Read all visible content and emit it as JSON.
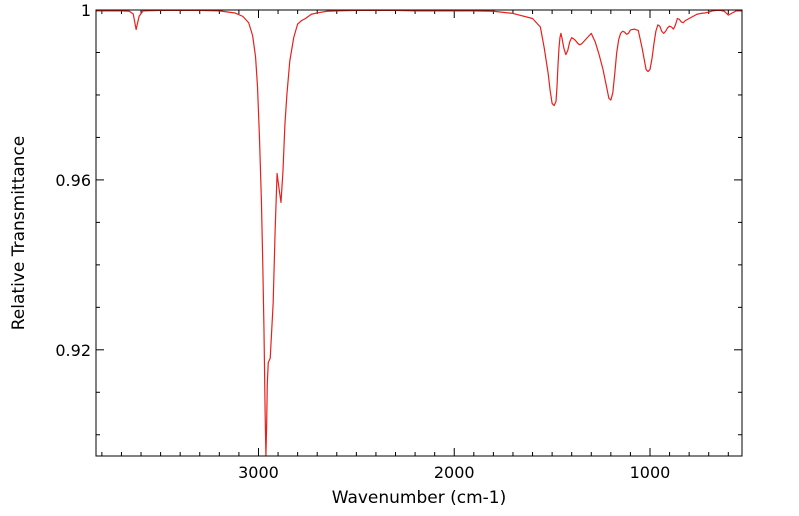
{
  "chart_data": {
    "type": "line",
    "title": "",
    "xlabel": "Wavenumber (cm-1)",
    "ylabel": "Relative Transmittance",
    "x_reversed": true,
    "xlim": [
      3830,
      530
    ],
    "ylim": [
      0.895,
      1.0
    ],
    "grid": false,
    "legend": "none",
    "x_ticks": [
      {
        "value": 3000,
        "label": "3000"
      },
      {
        "value": 2000,
        "label": "2000"
      },
      {
        "value": 1000,
        "label": "1000"
      }
    ],
    "y_ticks": [
      {
        "value": 1.0,
        "label": "1"
      },
      {
        "value": 0.96,
        "label": "0.96"
      },
      {
        "value": 0.92,
        "label": "0.92"
      }
    ],
    "x_minor_step": 100,
    "y_minor_step": 0.01,
    "series": [
      {
        "color": "#e8201c",
        "x": [
          3830,
          3700,
          3660,
          3640,
          3625,
          3610,
          3590,
          3500,
          3400,
          3300,
          3200,
          3120,
          3080,
          3050,
          3030,
          3015,
          3005,
          2995,
          2985,
          2978,
          2972,
          2966,
          2962,
          2958,
          2955,
          2950,
          2940,
          2925,
          2915,
          2905,
          2895,
          2885,
          2875,
          2865,
          2855,
          2840,
          2820,
          2800,
          2780,
          2760,
          2730,
          2700,
          2650,
          2600,
          2500,
          2400,
          2300,
          2200,
          2100,
          2000,
          1900,
          1800,
          1700,
          1600,
          1560,
          1540,
          1520,
          1510,
          1500,
          1490,
          1480,
          1475,
          1470,
          1465,
          1460,
          1455,
          1450,
          1440,
          1430,
          1420,
          1410,
          1400,
          1390,
          1380,
          1370,
          1360,
          1350,
          1340,
          1320,
          1300,
          1280,
          1260,
          1240,
          1220,
          1210,
          1200,
          1190,
          1180,
          1170,
          1160,
          1150,
          1140,
          1130,
          1120,
          1110,
          1100,
          1080,
          1060,
          1040,
          1020,
          1010,
          1000,
          990,
          980,
          970,
          960,
          950,
          940,
          930,
          920,
          910,
          900,
          890,
          880,
          870,
          860,
          850,
          840,
          830,
          820,
          800,
          780,
          760,
          740,
          720,
          700,
          680,
          660,
          640,
          620,
          600,
          580,
          560,
          530
        ],
        "y": [
          0.9998,
          0.9998,
          0.9997,
          0.9991,
          0.9954,
          0.9985,
          0.9998,
          0.9999,
          0.9999,
          0.9999,
          0.9998,
          0.9993,
          0.9985,
          0.997,
          0.994,
          0.989,
          0.982,
          0.97,
          0.955,
          0.94,
          0.925,
          0.905,
          0.895,
          0.903,
          0.912,
          0.917,
          0.918,
          0.931,
          0.948,
          0.9615,
          0.958,
          0.9547,
          0.962,
          0.973,
          0.98,
          0.988,
          0.9935,
          0.9967,
          0.9975,
          0.998,
          0.999,
          0.9993,
          0.9997,
          0.9998,
          0.9999,
          0.9999,
          0.9999,
          0.9998,
          0.9998,
          0.9998,
          0.9998,
          0.9997,
          0.9992,
          0.998,
          0.996,
          0.991,
          0.985,
          0.981,
          0.978,
          0.9775,
          0.9785,
          0.982,
          0.987,
          0.991,
          0.9935,
          0.9945,
          0.9935,
          0.991,
          0.9895,
          0.9905,
          0.9925,
          0.9935,
          0.9932,
          0.9928,
          0.9922,
          0.9918,
          0.992,
          0.9925,
          0.9935,
          0.9945,
          0.9925,
          0.9895,
          0.986,
          0.9815,
          0.9792,
          0.9788,
          0.9805,
          0.985,
          0.99,
          0.993,
          0.9945,
          0.995,
          0.9948,
          0.9943,
          0.9945,
          0.9953,
          0.9955,
          0.9952,
          0.991,
          0.986,
          0.9855,
          0.986,
          0.9885,
          0.992,
          0.995,
          0.9965,
          0.9962,
          0.995,
          0.9945,
          0.995,
          0.9958,
          0.9962,
          0.996,
          0.9955,
          0.9965,
          0.998,
          0.9978,
          0.9972,
          0.997,
          0.9975,
          0.998,
          0.9985,
          0.999,
          0.9992,
          0.9993,
          0.9995,
          0.9998,
          0.9999,
          0.9999,
          0.9997,
          0.9988,
          0.9993,
          0.9998,
          0.9998
        ]
      }
    ]
  }
}
